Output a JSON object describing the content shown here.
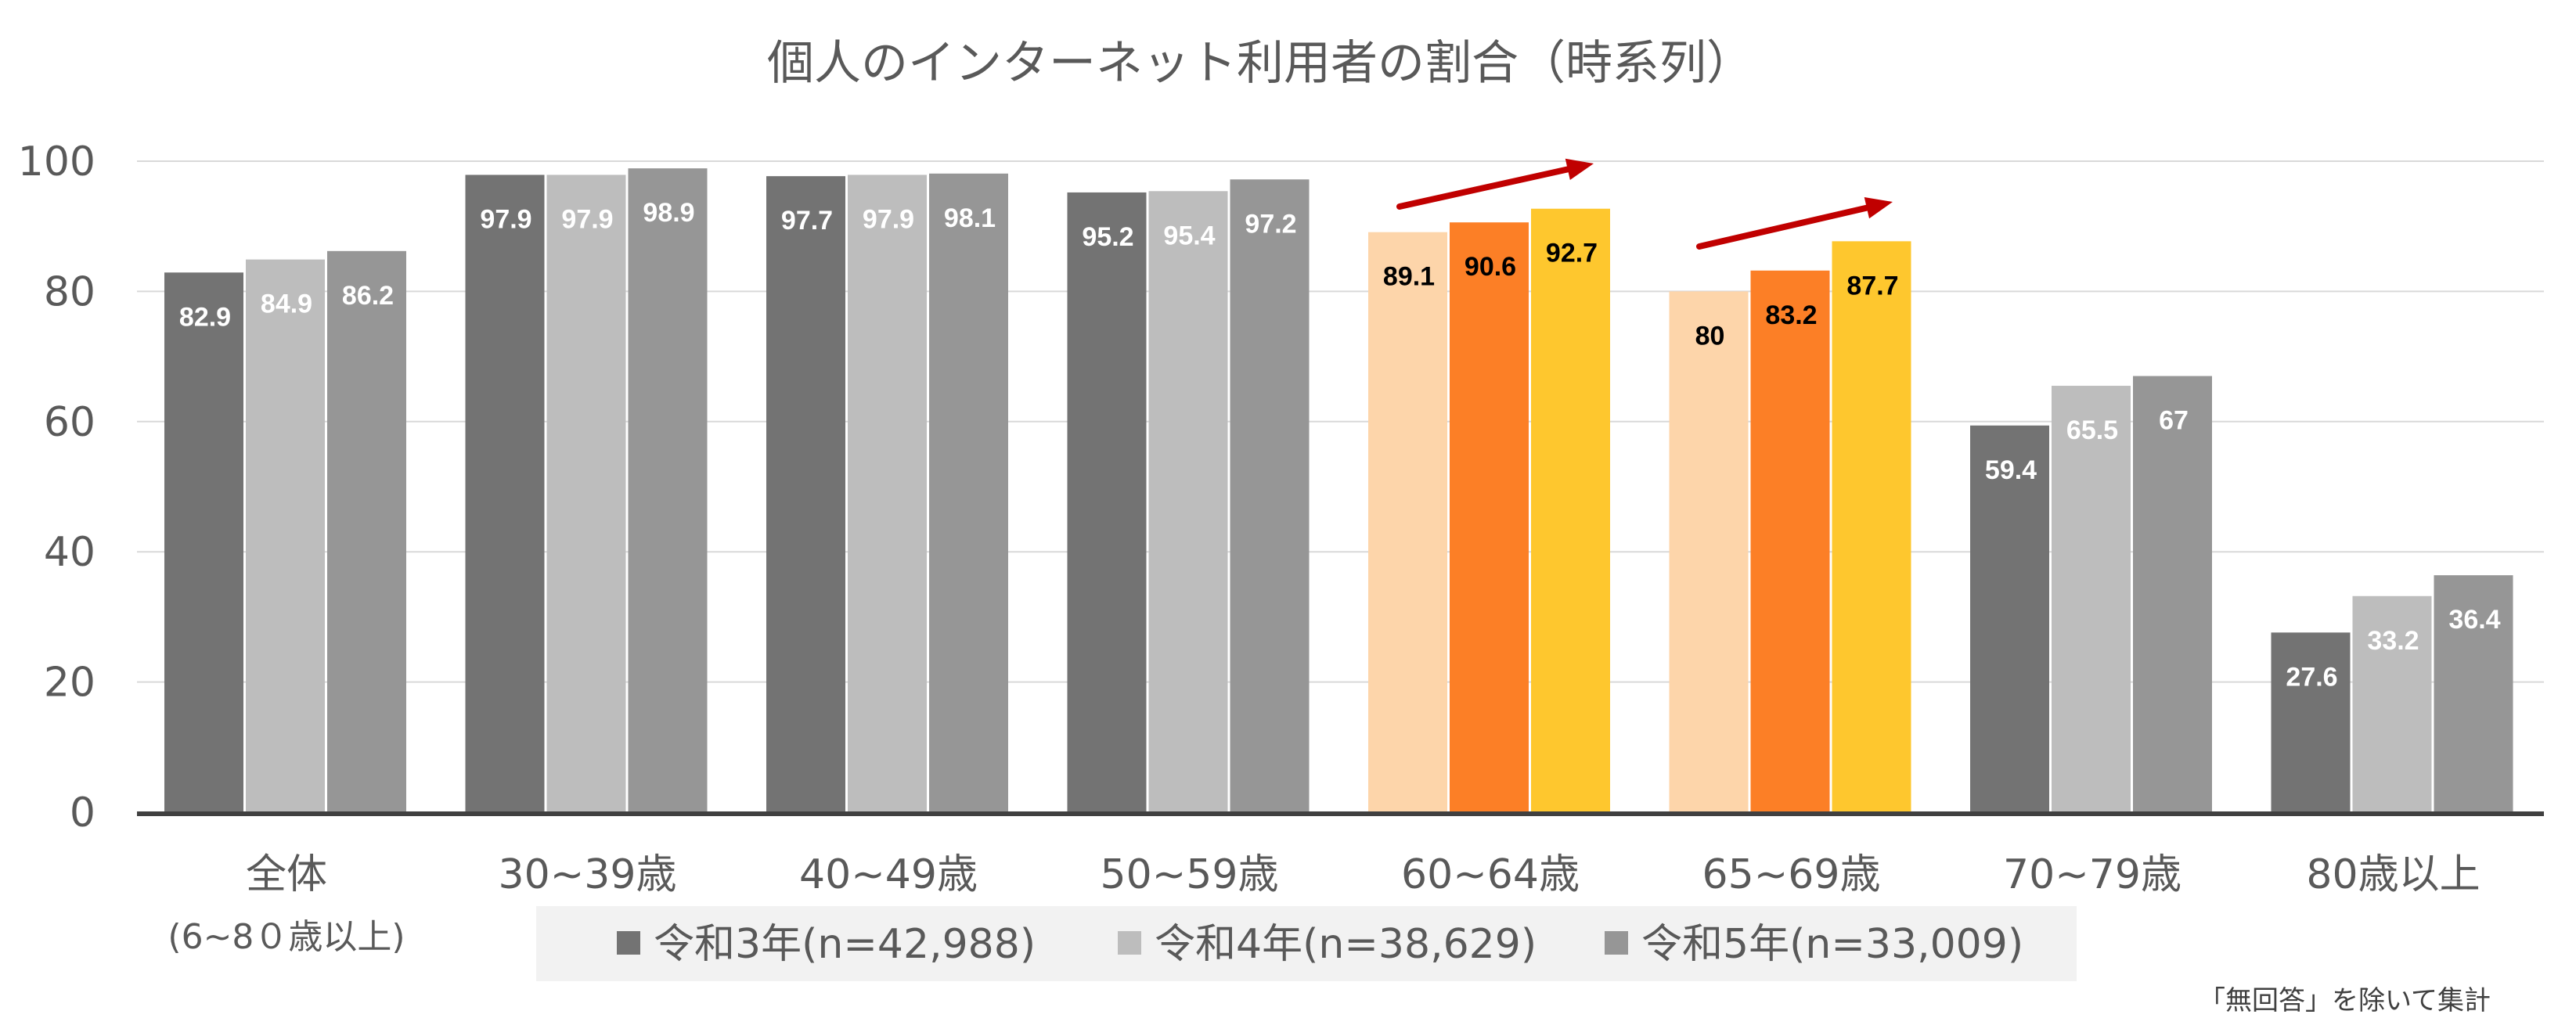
{
  "chart_data": {
    "type": "bar",
    "title": "個人のインターネット利用者の割合（時系列）",
    "categories": [
      "全体",
      "30~39歳",
      "40~49歳",
      "50~59歳",
      "60~64歳",
      "65~69歳",
      "70~79歳",
      "80歳以上"
    ],
    "category_sublabels": [
      "(6~8０歳以上)",
      "",
      "",
      "",
      "",
      "",
      "",
      ""
    ],
    "series": [
      {
        "name": "令和3年(n=42,988)",
        "values": [
          82.9,
          97.9,
          97.7,
          95.2,
          89.1,
          80,
          59.4,
          27.6
        ]
      },
      {
        "name": "令和4年(n=38,629)",
        "values": [
          84.9,
          97.9,
          97.9,
          95.4,
          90.6,
          83.2,
          65.5,
          33.2
        ]
      },
      {
        "name": "令和5年(n=33,009)",
        "values": [
          86.2,
          98.9,
          98.1,
          97.2,
          92.7,
          87.7,
          67,
          36.4
        ]
      }
    ],
    "ylim": [
      0,
      100
    ],
    "yticks": [
      0,
      20,
      40,
      60,
      80,
      100
    ],
    "grid": true,
    "legend_position": "bottom",
    "colors": {
      "series": [
        "#737373",
        "#bdbdbd",
        "#969696"
      ],
      "highlight_categories": [
        4,
        5
      ],
      "highlight_series": [
        "#fdd5aa",
        "#fc7f26",
        "#fec72e"
      ],
      "label_on_default": "#ffffff",
      "label_on_highlight": "#000000",
      "arrow": "#c00000"
    },
    "annotations": [
      "upward-arrow over 60~64歳",
      "upward-arrow over 65~69歳"
    ],
    "footnote": "「無回答」を除いて集計"
  }
}
